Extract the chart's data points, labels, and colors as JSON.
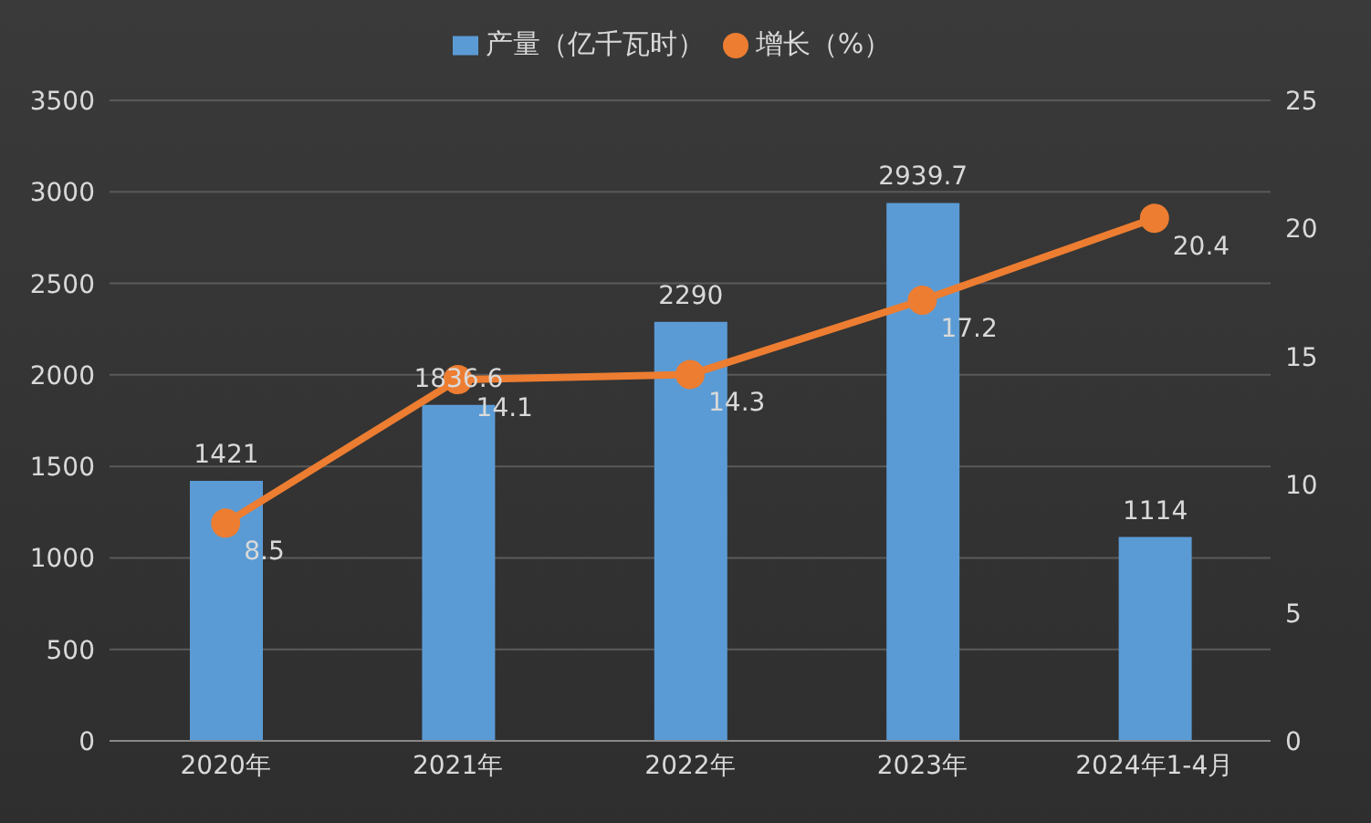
{
  "chart_data": {
    "type": "bar",
    "categories": [
      "2020年",
      "2021年",
      "2022年",
      "2023年",
      "2024年1-4月"
    ],
    "series": [
      {
        "name": "产量（亿千瓦时）",
        "color": "#5b9bd5",
        "values": [
          1421,
          1836.6,
          2290,
          2939.7,
          1114
        ]
      },
      {
        "name": "增长（%）",
        "type": "line",
        "axis": "y2",
        "color": "#ed7d31",
        "values": [
          8.5,
          14.1,
          14.3,
          17.2,
          20.4
        ]
      }
    ],
    "ylim": [
      0,
      3500
    ],
    "yticks": [
      0,
      500,
      1000,
      1500,
      2000,
      2500,
      3000,
      3500
    ],
    "y2lim": [
      0,
      25
    ],
    "y2ticks": [
      0,
      5,
      10,
      15,
      20,
      25
    ],
    "grid": "y",
    "legend": "top",
    "marker": "circle",
    "data_labels": true
  }
}
